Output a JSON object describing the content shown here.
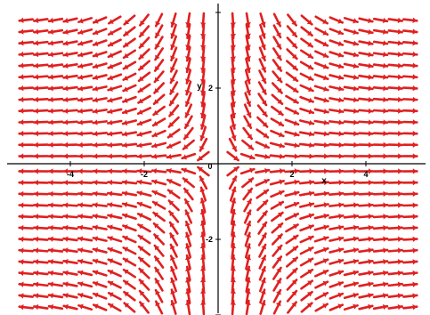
{
  "chart_data": {
    "type": "direction-field",
    "title": "",
    "xlabel": "x",
    "ylabel": "y",
    "xlim": [
      -5.5,
      5.5
    ],
    "ylim": [
      -4.0,
      4.0
    ],
    "grid": false,
    "x_ticks": [
      {
        "value": -4,
        "label": "-4"
      },
      {
        "value": -2,
        "label": "-2"
      },
      {
        "value": 2,
        "label": "2"
      },
      {
        "value": 4,
        "label": "4"
      }
    ],
    "y_ticks": [
      {
        "value": 2,
        "label": "2"
      },
      {
        "value": -2,
        "label": "-2"
      }
    ],
    "origin_label": "0",
    "arrow_grid": {
      "x_values": [
        -5.2,
        -4.8,
        -4.4,
        -4.0,
        -3.6,
        -3.2,
        -2.8,
        -2.4,
        -2.0,
        -1.6,
        -1.2,
        -0.8,
        -0.4,
        0.4,
        0.8,
        1.2,
        1.6,
        2.0,
        2.4,
        2.8,
        3.2,
        3.6,
        4.0,
        4.4,
        4.8,
        5.2
      ],
      "y_values": [
        -3.8,
        -3.5,
        -3.2,
        -2.9,
        -2.6,
        -2.3,
        -2.0,
        -1.7,
        -1.4,
        -1.1,
        -0.8,
        -0.5,
        -0.2,
        0.2,
        0.5,
        0.8,
        1.1,
        1.4,
        1.7,
        2.0,
        2.3,
        2.6,
        2.9,
        3.2,
        3.5,
        3.8
      ],
      "direction_rule": "arrows point away from the origin horizontally (leftward for x<0, rightward for x>0); upper half tilts downward, lower half tilts upward; near the y-axis arrows are nearly vertical"
    },
    "colors": {
      "arrows": "#e02020",
      "axes": "#000000",
      "background": "#ffffff"
    }
  }
}
